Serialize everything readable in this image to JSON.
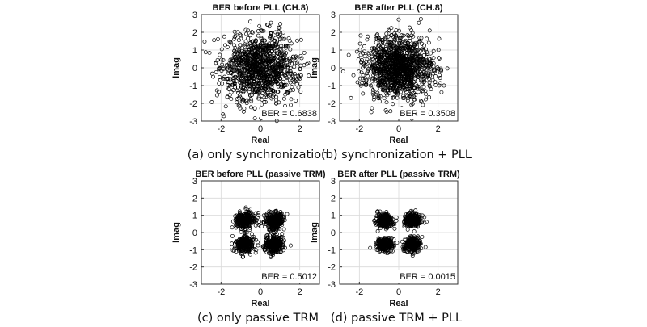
{
  "colors": {
    "marker": "#000000",
    "frame": "#333333",
    "grid": "#d9d9d9",
    "background": "#ffffff"
  },
  "chart_data": [
    {
      "type": "scatter",
      "title": "BER before PLL (CH.8)",
      "xlabel": "Real",
      "ylabel": "Imag",
      "xlim": [
        -3,
        3
      ],
      "ylim": [
        -3,
        3
      ],
      "xticks": [
        -2,
        0,
        2
      ],
      "yticks": [
        -3,
        -2,
        -1,
        0,
        1,
        2,
        3
      ],
      "grid": true,
      "annotation": "BER = 0.6838",
      "caption": "(a) only synchronization",
      "distribution": {
        "kind": "gaussian-cloud",
        "center": [
          0,
          0
        ],
        "std": 0.95,
        "count": 1100
      }
    },
    {
      "type": "scatter",
      "title": "BER after PLL (CH.8)",
      "xlabel": "Real",
      "ylabel": "Imag",
      "xlim": [
        -3,
        3
      ],
      "ylim": [
        -3,
        3
      ],
      "xticks": [
        -2,
        0,
        2
      ],
      "yticks": [
        -3,
        -2,
        -1,
        0,
        1,
        2,
        3
      ],
      "grid": true,
      "annotation": "BER = 0.3508",
      "caption": "(b) synchronization + PLL",
      "distribution": {
        "kind": "gaussian-cloud",
        "center": [
          0,
          0
        ],
        "std": 0.85,
        "count": 1300
      }
    },
    {
      "type": "scatter",
      "title": "BER before PLL (passive TRM)",
      "xlabel": "Real",
      "ylabel": "Imag",
      "xlim": [
        -3,
        3
      ],
      "ylim": [
        -3,
        3
      ],
      "xticks": [
        -2,
        0,
        2
      ],
      "yticks": [
        -3,
        -2,
        -1,
        0,
        1,
        2,
        3
      ],
      "grid": true,
      "annotation": "BER = 0.5012",
      "caption": "(c) only passive TRM",
      "distribution": {
        "kind": "qpsk-clusters",
        "centers": [
          [
            -0.8,
            0.7
          ],
          [
            0.7,
            0.7
          ],
          [
            -0.8,
            -0.7
          ],
          [
            0.7,
            -0.7
          ]
        ],
        "std": 0.25,
        "count_per_cluster": 300
      }
    },
    {
      "type": "scatter",
      "title": "BER after PLL (passive TRM)",
      "xlabel": "Real",
      "ylabel": "Imag",
      "xlim": [
        -3,
        3
      ],
      "ylim": [
        -3,
        3
      ],
      "xticks": [
        -2,
        0,
        2
      ],
      "yticks": [
        -3,
        -2,
        -1,
        0,
        1,
        2,
        3
      ],
      "grid": true,
      "annotation": "BER = 0.0015",
      "caption": "(d) passive TRM + PLL",
      "distribution": {
        "kind": "qpsk-clusters",
        "centers": [
          [
            -0.7,
            0.7
          ],
          [
            0.7,
            0.7
          ],
          [
            -0.7,
            -0.7
          ],
          [
            0.7,
            -0.7
          ]
        ],
        "std": 0.2,
        "count_per_cluster": 300
      }
    }
  ]
}
